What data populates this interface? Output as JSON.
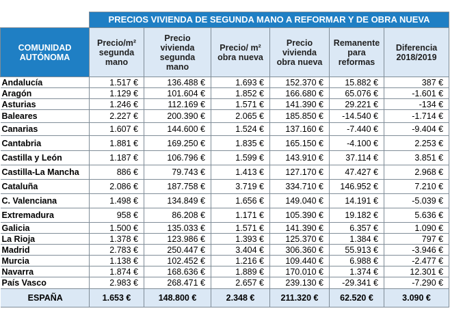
{
  "table": {
    "banner": "PRECIOS VIVIENDA DE SEGUNDA MANO A REFORMAR Y DE OBRA NUEVA",
    "region_header_line1": "COMUNIDAD",
    "region_header_line2": "AUTÓNOMA",
    "columns": [
      {
        "lines": [
          "Precio/m²",
          "segunda",
          "mano"
        ]
      },
      {
        "lines": [
          "Precio",
          "vivienda",
          "segunda",
          "mano"
        ]
      },
      {
        "lines": [
          "Precio/ m²",
          "obra nueva"
        ]
      },
      {
        "lines": [
          "Precio",
          "vivienda",
          "obra nueva"
        ]
      },
      {
        "lines": [
          "Remanente",
          "para",
          "reformas"
        ]
      },
      {
        "lines": [
          "Diferencia",
          "2018/2019"
        ]
      }
    ],
    "rows": [
      {
        "region": "Andalucía",
        "values": [
          "1.517 €",
          "136.488 €",
          "1.693 €",
          "152.370 €",
          "15.882 €",
          "387 €"
        ]
      },
      {
        "region": "Aragón",
        "values": [
          "1.129 €",
          "101.604 €",
          "1.852 €",
          "166.680 €",
          "65.076 €",
          "-1.601 €"
        ]
      },
      {
        "region": "Asturias",
        "values": [
          "1.246 €",
          "112.169 €",
          "1.571 €",
          "141.390 €",
          "29.221 €",
          "-134 €"
        ]
      },
      {
        "region": "Baleares",
        "values": [
          "2.227 €",
          "200.390 €",
          "2.065 €",
          "185.850 €",
          "-14.540 €",
          "-1.714 €"
        ]
      },
      {
        "region": "Canarias",
        "values": [
          "1.607 €",
          "144.600 €",
          "1.524 €",
          "137.160 €",
          "-7.440 €",
          "-9.404 €"
        ]
      },
      {
        "region": "Cantabria",
        "values": [
          "1.881 €",
          "169.250 €",
          "1.835 €",
          "165.150 €",
          "-4.100 €",
          "2.253 €"
        ]
      },
      {
        "region": "Castilla y León",
        "values": [
          "1.187 €",
          "106.796 €",
          "1.599 €",
          "143.910 €",
          "37.114 €",
          "3.851 €"
        ]
      },
      {
        "region": "Castilla-La Mancha",
        "values": [
          "886 €",
          "79.743 €",
          "1.413 €",
          "127.170 €",
          "47.427 €",
          "2.968 €"
        ]
      },
      {
        "region": "Cataluña",
        "values": [
          "2.086 €",
          "187.758 €",
          "3.719 €",
          "334.710 €",
          "146.952 €",
          "7.210 €"
        ]
      },
      {
        "region": "C. Valenciana",
        "values": [
          "1.498 €",
          "134.849 €",
          "1.656 €",
          "149.040 €",
          "14.191 €",
          "-5.039 €"
        ]
      },
      {
        "region": "Extremadura",
        "values": [
          "958 €",
          "86.208 €",
          "1.171 €",
          "105.390 €",
          "19.182 €",
          "5.636 €"
        ]
      },
      {
        "region": "Galicia",
        "values": [
          "1.500 €",
          "135.033 €",
          "1.571 €",
          "141.390 €",
          "6.357 €",
          "1.090 €"
        ]
      },
      {
        "region": "La Rioja",
        "values": [
          "1.378 €",
          "123.986 €",
          "1.393 €",
          "125.370 €",
          "1.384 €",
          "797 €"
        ]
      },
      {
        "region": "Madrid",
        "values": [
          "2.783 €",
          "250.447 €",
          "3.404 €",
          "306.360 €",
          "55.913 €",
          "-3.946 €"
        ]
      },
      {
        "region": "Murcia",
        "values": [
          "1.138 €",
          "102.452 €",
          "1.216 €",
          "109.440 €",
          "6.988 €",
          "-2.477 €"
        ]
      },
      {
        "region": "Navarra",
        "values": [
          "1.874 €",
          "168.636 €",
          "1.889 €",
          "170.010 €",
          "1.374 €",
          "12.301 €"
        ]
      },
      {
        "region": "País Vasco",
        "values": [
          "2.983 €",
          "268.471 €",
          "2.657 €",
          "239.130 €",
          "-29.341 €",
          "-7.290 €"
        ]
      }
    ],
    "total": {
      "region": "ESPAÑA",
      "values": [
        "1.653 €",
        "148.800 €",
        "2.348 €",
        "211.320 €",
        "62.520 €",
        "3.090 €"
      ]
    }
  },
  "colors": {
    "header_blue": "#1f7fc4",
    "light_blue": "#dbe8f5",
    "border": "#7f8c97"
  }
}
